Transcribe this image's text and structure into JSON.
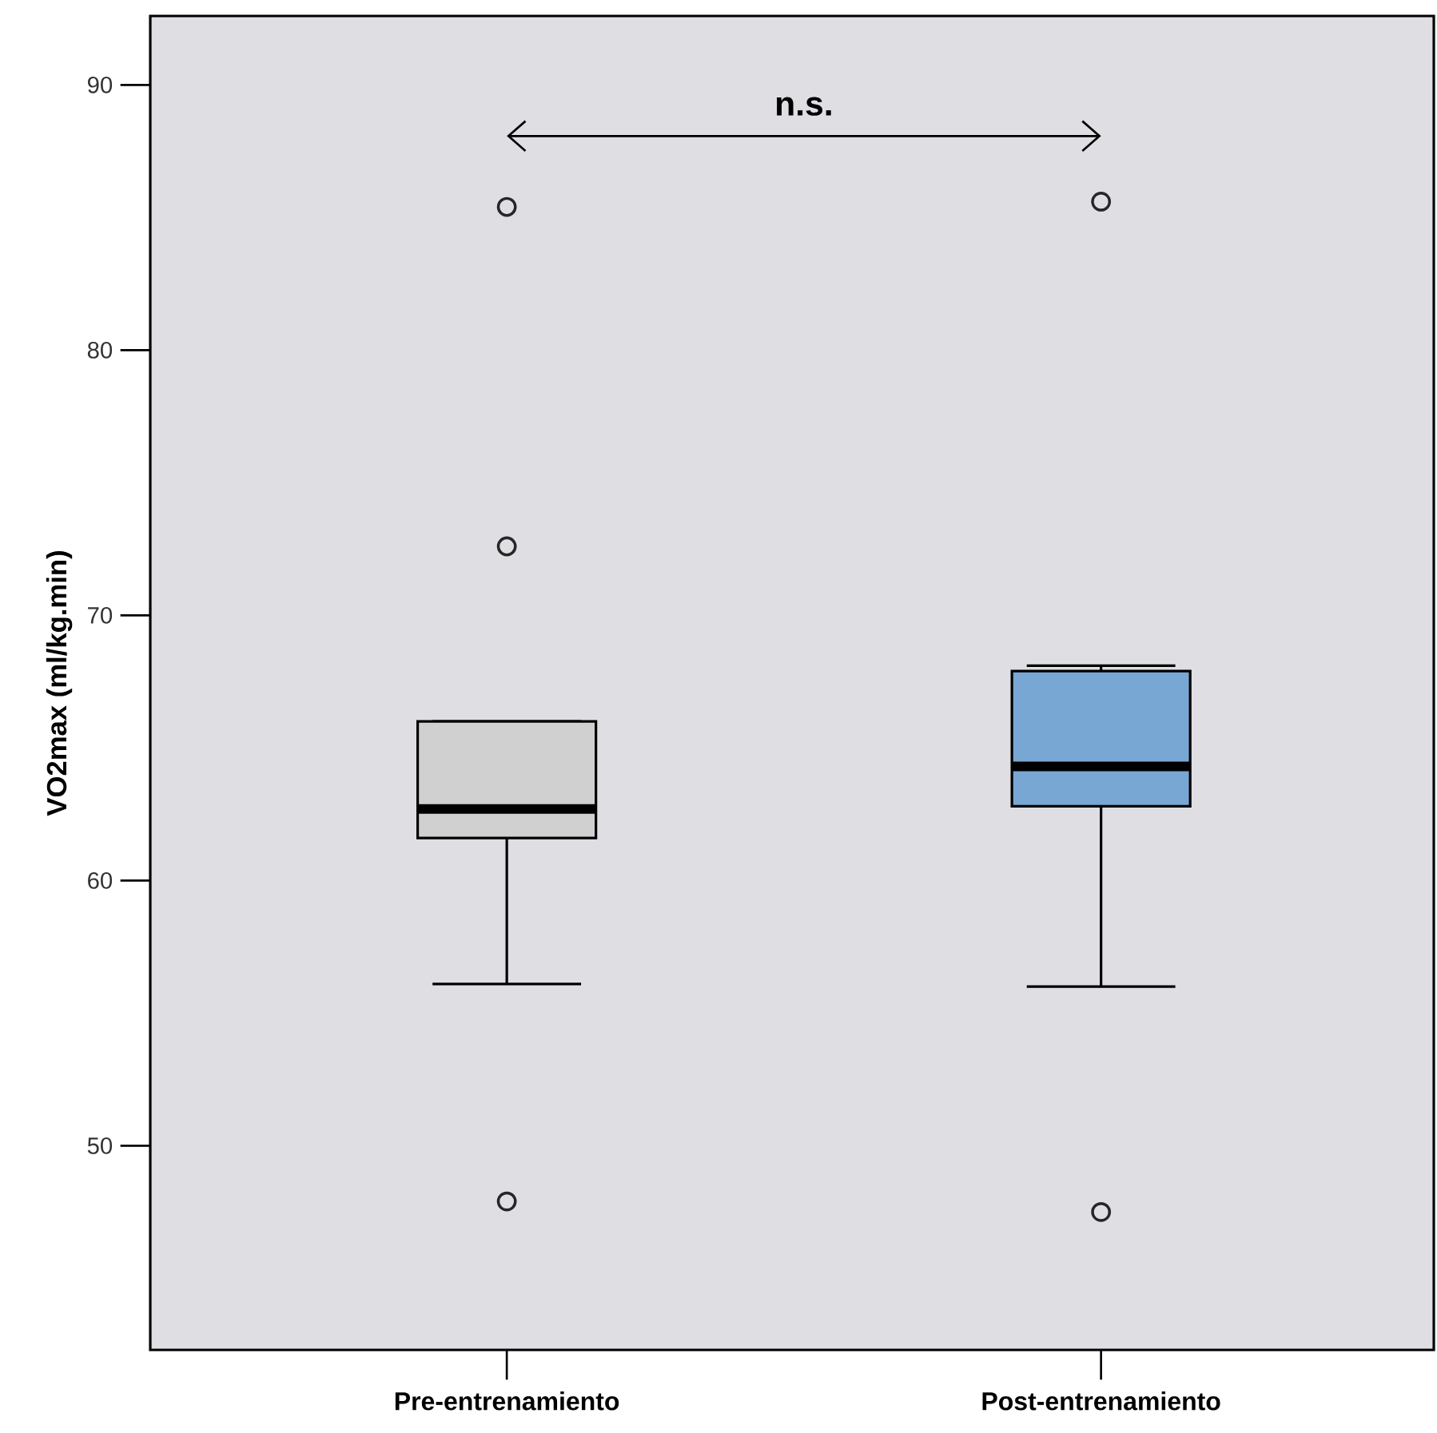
{
  "chart_data": {
    "type": "box",
    "ylabel": "VO2max (ml/kg.min)",
    "categories": [
      "Pre-entrenamiento",
      "Post-entrenamiento"
    ],
    "boxes": [
      {
        "low": 56.1,
        "q1": 61.6,
        "median": 62.7,
        "q3": 66.0,
        "high": 66.0,
        "outliers": [
          72.6,
          85.4,
          47.9
        ]
      },
      {
        "low": 56.0,
        "q1": 62.8,
        "median": 64.3,
        "q3": 67.9,
        "high": 68.1,
        "outliers": [
          85.6,
          47.5
        ]
      }
    ],
    "colors": [
      "#d0d0d0",
      "#79a7d4"
    ],
    "ylim": [
      42.3,
      92.6
    ],
    "yticks": [
      50,
      60,
      70,
      80,
      90
    ],
    "annotations": [
      "n.s."
    ]
  }
}
